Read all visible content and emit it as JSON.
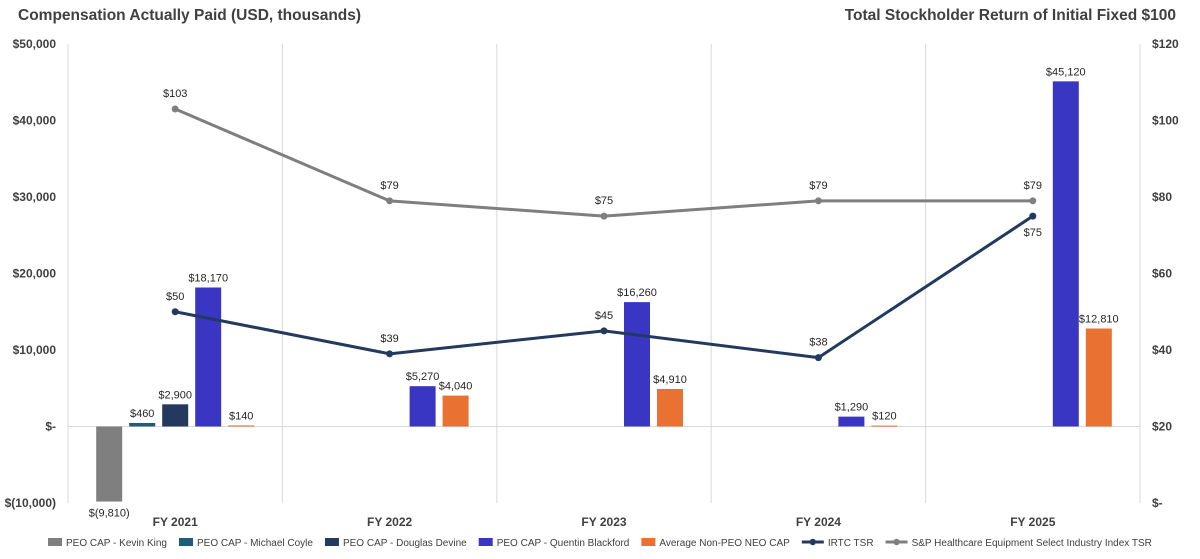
{
  "header": {
    "left_title": "Compensation Actually Paid (USD, thousands)",
    "right_title": "Total Stockholder Return of Initial Fixed $100"
  },
  "chart_data": {
    "type": "bar",
    "categories": [
      "FY 2021",
      "FY 2022",
      "FY 2023",
      "FY 2024",
      "FY 2025"
    ],
    "y_left": {
      "label": "Compensation Actually Paid (USD, thousands)",
      "ylim": [
        -10000,
        50000
      ],
      "ticks": [
        50000,
        40000,
        30000,
        20000,
        10000,
        0,
        -10000
      ],
      "tick_labels": [
        "$50,000",
        "$40,000",
        "$30,000",
        "$20,000",
        "$10,000",
        "$-",
        "$(10,000)"
      ]
    },
    "y_right": {
      "label": "Total Stockholder Return of Initial Fixed $100",
      "ylim": [
        0,
        120
      ],
      "ticks": [
        120,
        100,
        80,
        60,
        40,
        20,
        0
      ],
      "tick_labels": [
        "$120",
        "$100",
        "$80",
        "$60",
        "$40",
        "$20",
        "$-"
      ]
    },
    "bar_series": [
      {
        "name": "PEO CAP - Kevin King",
        "color": "#7f7f7f",
        "values": [
          -9810,
          null,
          null,
          null,
          null
        ],
        "labels": [
          "$(9,810)",
          null,
          null,
          null,
          null
        ]
      },
      {
        "name": "PEO CAP - Michael Coyle",
        "color": "#1f5c7a",
        "values": [
          460,
          null,
          null,
          null,
          null
        ],
        "labels": [
          "$460",
          null,
          null,
          null,
          null
        ]
      },
      {
        "name": "PEO CAP - Douglas Devine",
        "color": "#23395d",
        "values": [
          2900,
          null,
          null,
          null,
          null
        ],
        "labels": [
          "$2,900",
          null,
          null,
          null,
          null
        ]
      },
      {
        "name": "PEO CAP - Quentin Blackford",
        "color": "#3a36c4",
        "values": [
          18170,
          5270,
          16260,
          1290,
          45120
        ],
        "labels": [
          "$18,170",
          "$5,270",
          "$16,260",
          "$1,290",
          "$45,120"
        ]
      },
      {
        "name": "Average Non-PEO NEO CAP",
        "color": "#e97132",
        "values": [
          140,
          4040,
          4910,
          120,
          12810
        ],
        "labels": [
          "$140",
          "$4,040",
          "$4,910",
          "$120",
          "$12,810"
        ]
      }
    ],
    "line_series": [
      {
        "name": "IRTC TSR",
        "color": "#23395d",
        "axis": "right",
        "values": [
          50,
          39,
          45,
          38,
          75
        ],
        "labels": [
          "$50",
          "$39",
          "$45",
          "$38",
          "$75"
        ]
      },
      {
        "name": "S&P Healthcare Equipment Select Industry Index TSR",
        "color": "#7f7f7f",
        "axis": "right",
        "values": [
          103,
          79,
          75,
          79,
          79
        ],
        "labels": [
          "$103",
          "$79",
          "$75",
          "$79",
          "$79"
        ]
      }
    ],
    "legend_position": "bottom",
    "grid": "vertical"
  }
}
